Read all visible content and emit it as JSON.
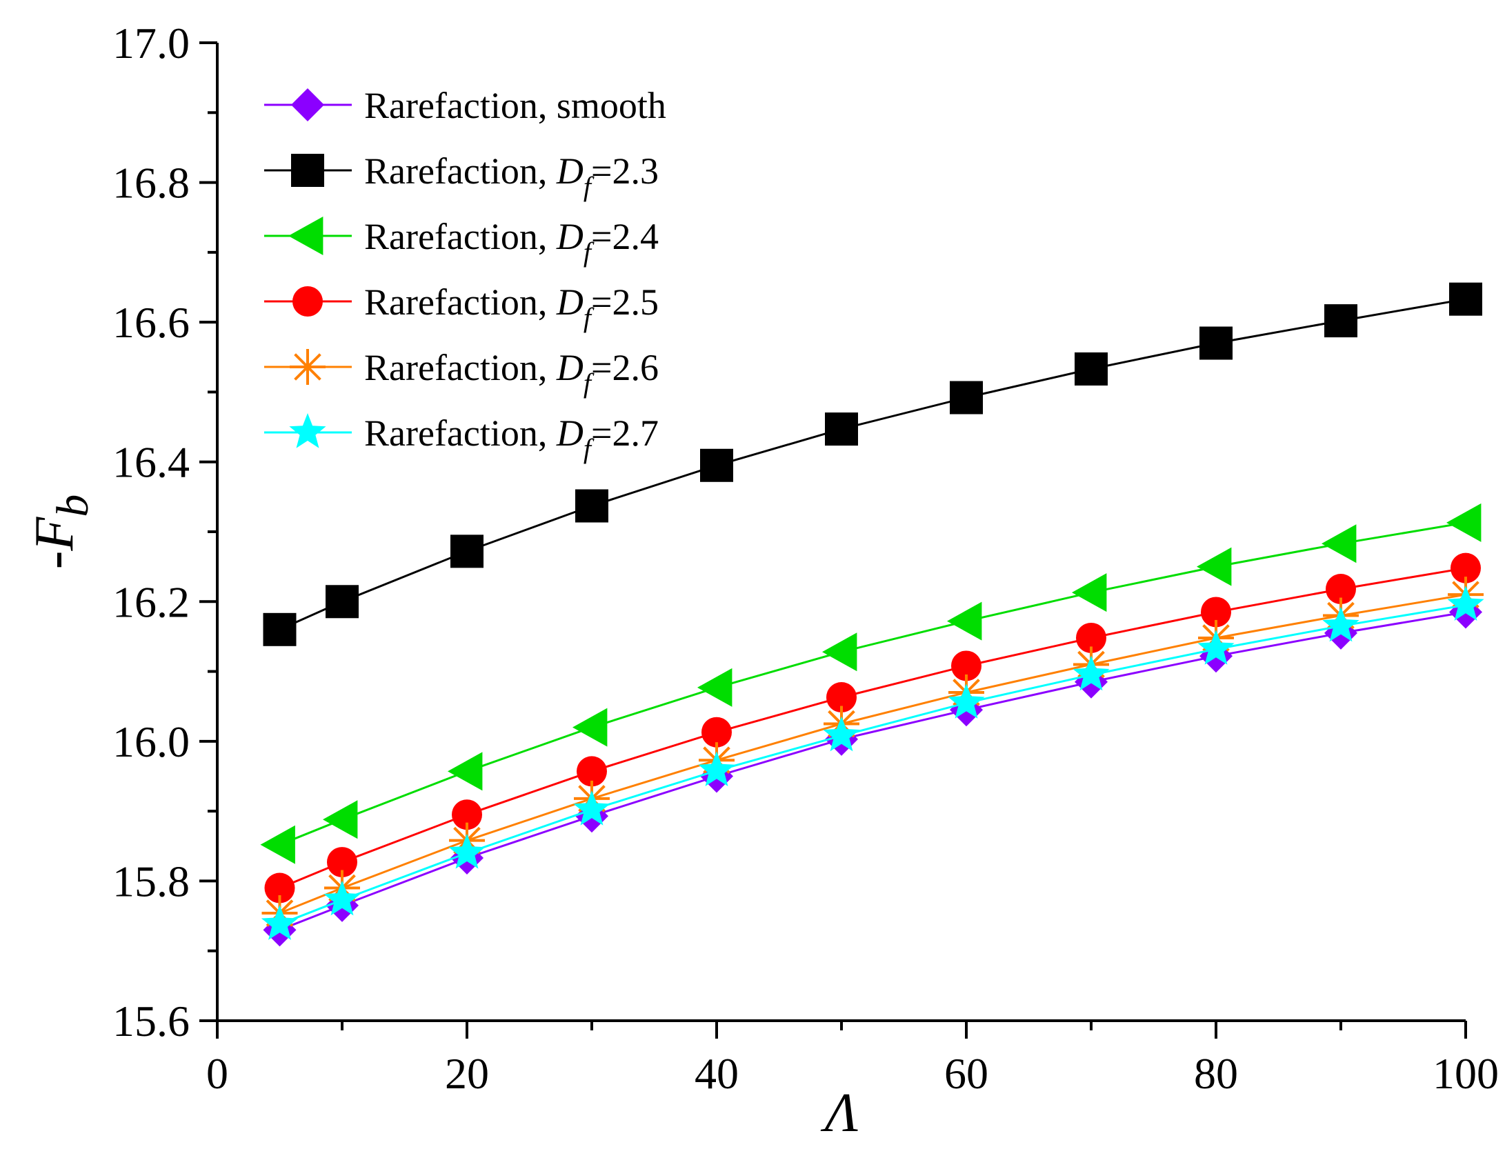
{
  "chart_data": {
    "type": "line",
    "title": "",
    "xlabel": "Λ",
    "ylabel_prefix": "-F",
    "ylabel_sub": "b",
    "xlim": [
      0,
      100
    ],
    "ylim": [
      15.6,
      17.0
    ],
    "x_ticks": [
      0,
      20,
      40,
      60,
      80,
      100
    ],
    "x_tick_labels": [
      "0",
      "20",
      "40",
      "60",
      "80",
      "100"
    ],
    "y_ticks": [
      15.6,
      15.8,
      16.0,
      16.2,
      16.4,
      16.6,
      16.8,
      17.0
    ],
    "y_tick_labels": [
      "15.6",
      "15.8",
      "16.0",
      "16.2",
      "16.4",
      "16.6",
      "16.8",
      "17.0"
    ],
    "x_minor_step": 10,
    "y_minor_step": 0.1,
    "grid": false,
    "legend_position": "top-left",
    "x": [
      5,
      10,
      20,
      30,
      40,
      50,
      60,
      70,
      80,
      90,
      100
    ],
    "series": [
      {
        "name": "Rarefaction, smooth",
        "label_main": "Rarefaction, smooth",
        "label_sym": "",
        "label_sub": "",
        "label_tail": "",
        "marker": "diamond",
        "color": "#8b00ff",
        "values": [
          15.73,
          15.765,
          15.833,
          15.893,
          15.95,
          16.003,
          16.045,
          16.085,
          16.122,
          16.155,
          16.185
        ]
      },
      {
        "name": "Rarefaction, Df=2.3",
        "label_main": "Rarefaction, ",
        "label_sym": "D",
        "label_sub": "f",
        "label_tail": "=2.3",
        "marker": "square",
        "color": "#000000",
        "values": [
          16.16,
          16.2,
          16.272,
          16.337,
          16.395,
          16.447,
          16.492,
          16.533,
          16.57,
          16.602,
          16.633
        ]
      },
      {
        "name": "Rarefaction, Df=2.4",
        "label_main": "Rarefaction, ",
        "label_sym": "D",
        "label_sub": "f",
        "label_tail": "=2.4",
        "marker": "triangle-left",
        "color": "#00dd00",
        "values": [
          15.852,
          15.888,
          15.957,
          16.02,
          16.077,
          16.128,
          16.172,
          16.213,
          16.25,
          16.283,
          16.313
        ]
      },
      {
        "name": "Rarefaction, Df=2.5",
        "label_main": "Rarefaction, ",
        "label_sym": "D",
        "label_sub": "f",
        "label_tail": "=2.5",
        "marker": "circle",
        "color": "#ff0000",
        "values": [
          15.79,
          15.827,
          15.895,
          15.957,
          16.013,
          16.063,
          16.108,
          16.148,
          16.185,
          16.218,
          16.248
        ]
      },
      {
        "name": "Rarefaction, Df=2.6",
        "label_main": "Rarefaction, ",
        "label_sym": "D",
        "label_sub": "f",
        "label_tail": "=2.6",
        "marker": "asterisk",
        "color": "#ff8000",
        "values": [
          15.754,
          15.79,
          15.858,
          15.918,
          15.973,
          16.025,
          16.07,
          16.11,
          16.148,
          16.18,
          16.21
        ]
      },
      {
        "name": "Rarefaction, Df=2.7",
        "label_main": "Rarefaction, ",
        "label_sym": "D",
        "label_sub": "f",
        "label_tail": "=2.7",
        "marker": "star",
        "color": "#00ffff",
        "values": [
          15.738,
          15.773,
          15.84,
          15.902,
          15.958,
          16.008,
          16.055,
          16.095,
          16.132,
          16.165,
          16.195
        ]
      }
    ]
  }
}
